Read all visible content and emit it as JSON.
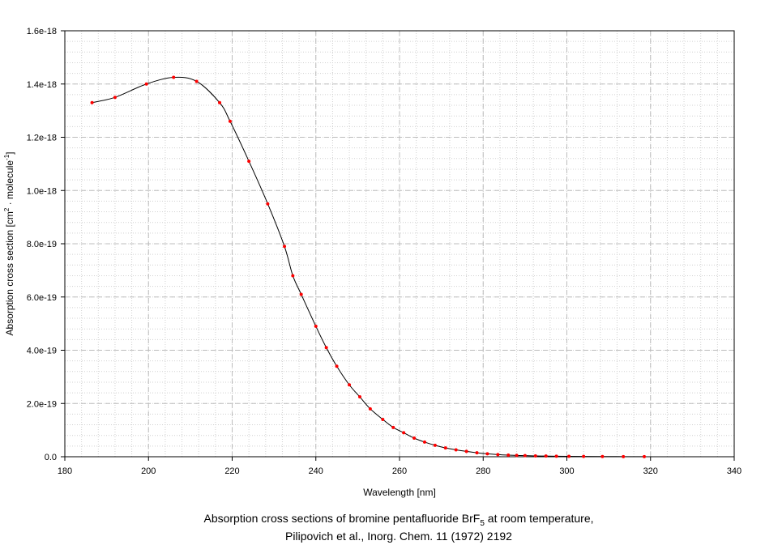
{
  "chart_data": {
    "type": "line",
    "xlabel": "Wavelength [nm]",
    "ylabel": {
      "prefix": "Absorption cross section [cm",
      "sup1": "2",
      "middle": " · molecule",
      "sup2": "-1",
      "suffix": "]"
    },
    "caption": {
      "line1_prefix": "Absorption cross sections of bromine pentafluoride BrF",
      "line1_sub": "5",
      "line1_suffix": " at room temperature,",
      "line2": "Pilipovich et al., Inorg. Chem. 11 (1972) 2192"
    },
    "xlim": [
      180,
      340
    ],
    "ylim": [
      0,
      1.6e-18
    ],
    "x_ticks": [
      {
        "value": 180,
        "label": "180"
      },
      {
        "value": 200,
        "label": "200"
      },
      {
        "value": 220,
        "label": "220"
      },
      {
        "value": 240,
        "label": "240"
      },
      {
        "value": 260,
        "label": "260"
      },
      {
        "value": 280,
        "label": "280"
      },
      {
        "value": 300,
        "label": "300"
      },
      {
        "value": 320,
        "label": "320"
      },
      {
        "value": 340,
        "label": "340"
      }
    ],
    "y_ticks": [
      {
        "value": 0,
        "label": "0.0"
      },
      {
        "value": 2e-19,
        "label": "2.0e-19"
      },
      {
        "value": 4e-19,
        "label": "4.0e-19"
      },
      {
        "value": 6e-19,
        "label": "6.0e-19"
      },
      {
        "value": 8e-19,
        "label": "8.0e-19"
      },
      {
        "value": 1e-18,
        "label": "1.0e-18"
      },
      {
        "value": 1.2e-18,
        "label": "1.2e-18"
      },
      {
        "value": 1.4e-18,
        "label": "1.4e-18"
      },
      {
        "value": 1.6e-18,
        "label": "1.6e-18"
      }
    ],
    "x_minor_step": 4,
    "y_minor_step": 4e-20,
    "grid": true,
    "line_color": "#000000",
    "marker_color": "#ff0000",
    "series": [
      {
        "x": [
          186.5,
          192,
          199.5,
          206,
          211.5,
          217,
          219.5,
          224,
          228.5,
          232.5,
          234.5,
          236.5,
          240,
          242.5,
          245,
          248,
          250.5,
          253,
          256,
          258.5,
          261,
          263.5,
          266,
          268.5,
          271,
          273.5,
          276,
          278.5,
          281,
          283.5,
          286,
          288,
          290,
          292.5,
          295,
          297.5,
          300.5,
          304,
          308.5,
          313.5,
          318.5
        ],
        "y": [
          1.33e-18,
          1.35e-18,
          1.4e-18,
          1.425e-18,
          1.41e-18,
          1.33e-18,
          1.26e-18,
          1.11e-18,
          9.5e-19,
          7.9e-19,
          6.8e-19,
          6.1e-19,
          4.9e-19,
          4.1e-19,
          3.4e-19,
          2.7e-19,
          2.25e-19,
          1.8e-19,
          1.4e-19,
          1.1e-19,
          9e-20,
          7e-20,
          5.5e-20,
          4.3e-20,
          3.3e-20,
          2.6e-20,
          2e-20,
          1.5e-20,
          1.1e-20,
          8e-21,
          6e-21,
          5e-21,
          4e-21,
          3e-21,
          2.5e-21,
          2e-21,
          1.5e-21,
          1e-21,
          8e-22,
          5e-22,
          3e-22
        ]
      }
    ]
  }
}
